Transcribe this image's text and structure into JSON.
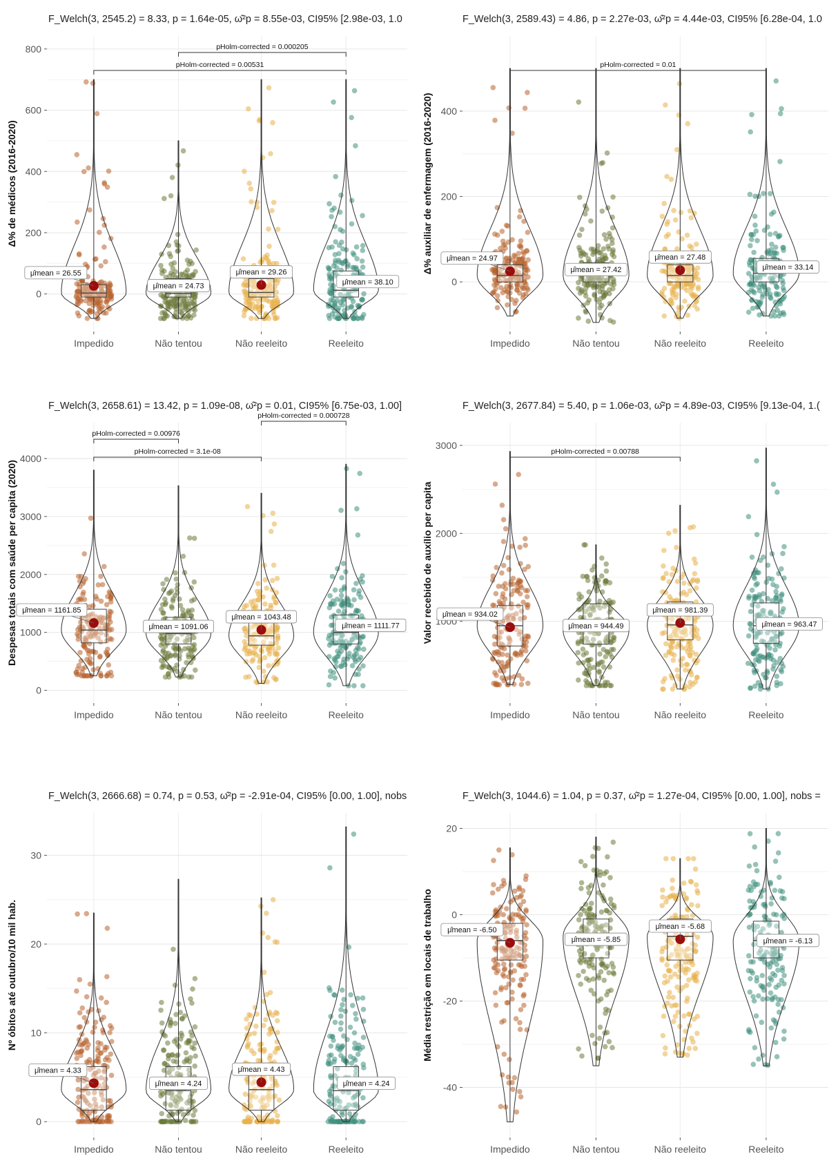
{
  "colors": {
    "Impedido": "#b8652f",
    "Não tentou": "#6b7a3a",
    "Não reeleito": "#e8b04a",
    "Reeleito": "#3f8f7e",
    "mean_point": "#9b0d0d"
  },
  "chart_data": [
    {
      "type": "violin",
      "title": "F_Welch(3, 2545.2) = 8.33, p = 1.64e-05, ω̂²p = 8.55e-03, CI95% [2.98e-03, 1.0",
      "ylabel": "Δ% de médicos (2016-2020)",
      "categories": [
        "Impedido",
        "Não tentou",
        "Não reeleito",
        "Reeleito"
      ],
      "ylim": [
        -100,
        820
      ],
      "yticks": [
        0,
        200,
        400,
        600,
        800
      ],
      "means": [
        26.55,
        24.73,
        29.26,
        38.1
      ],
      "mean_labels": [
        "μ̂mean = 26.55",
        "μ̂mean = 24.73",
        "μ̂mean = 29.26",
        "μ̂mean = 38.10"
      ],
      "quartiles": [
        [
          -10,
          3,
          30
        ],
        [
          -10,
          2,
          50
        ],
        [
          -10,
          5,
          50
        ],
        [
          -10,
          12,
          75
        ]
      ],
      "ranges": [
        [
          -80,
          700
        ],
        [
          -80,
          500
        ],
        [
          -80,
          700
        ],
        [
          -80,
          700
        ]
      ],
      "comparisons": [
        {
          "from": 0,
          "to": 3,
          "level": 1,
          "label": "pHolm-corrected = 0.00531"
        },
        {
          "from": 1,
          "to": 3,
          "level": 2,
          "label": "pHolm-corrected = 0.000205"
        }
      ]
    },
    {
      "type": "violin",
      "title": "F_Welch(3, 2589.43) = 4.86, p = 2.27e-03, ω̂²p = 4.44e-03, CI95% [6.28e-04, 1.0",
      "ylabel": "Δ% auxiliar de enfermagem (2016-2020)",
      "categories": [
        "Impedido",
        "Não tentou",
        "Não reeleito",
        "Reeleito"
      ],
      "ylim": [
        -100,
        560
      ],
      "yticks": [
        0,
        200,
        400
      ],
      "means": [
        24.97,
        27.42,
        27.48,
        33.14
      ],
      "mean_labels": [
        "μ̂mean = 24.97",
        "μ̂mean = 27.42",
        "μ̂mean = 27.48",
        "μ̂mean = 33.14"
      ],
      "quartiles": [
        [
          0,
          15,
          40
        ],
        [
          0,
          15,
          45
        ],
        [
          0,
          15,
          40
        ],
        [
          0,
          20,
          55
        ]
      ],
      "ranges": [
        [
          -80,
          500
        ],
        [
          -95,
          500
        ],
        [
          -85,
          500
        ],
        [
          -80,
          500
        ]
      ],
      "comparisons": [
        {
          "from": 0,
          "to": 3,
          "level": 1,
          "label": "pHolm-corrected = 0.01"
        }
      ]
    },
    {
      "type": "violin",
      "title": "F_Welch(3, 2658.61) = 13.42, p = 1.09e-08, ω̂²p = 0.01, CI95% [6.75e-03, 1.00]",
      "ylabel": "Despesas totais com saúde per capita (2020)",
      "categories": [
        "Impedido",
        "Não tentou",
        "Não reeleito",
        "Reeleito"
      ],
      "ylim": [
        -100,
        4500
      ],
      "yticks": [
        0,
        1000,
        2000,
        3000,
        4000
      ],
      "means": [
        1161.85,
        1091.06,
        1043.48,
        1111.77
      ],
      "mean_labels": [
        "μ̂mean = 1161.85",
        "μ̂mean = 1091.06",
        "μ̂mean = 1043.48",
        "μ̂mean = 1111.77"
      ],
      "quartiles": [
        [
          820,
          1040,
          1400
        ],
        [
          800,
          980,
          1260
        ],
        [
          780,
          940,
          1230
        ],
        [
          800,
          1000,
          1300
        ]
      ],
      "ranges": [
        [
          250,
          3800
        ],
        [
          230,
          3530
        ],
        [
          120,
          3400
        ],
        [
          80,
          3900
        ]
      ],
      "comparisons": [
        {
          "from": 0,
          "to": 2,
          "level": 1,
          "label": "pHolm-corrected = 3.1e-08"
        },
        {
          "from": 0,
          "to": 1,
          "level": 2,
          "label": "pHolm-corrected = 0.00976"
        },
        {
          "from": 2,
          "to": 3,
          "level": 3,
          "label": "pHolm-corrected = 0.000728"
        }
      ]
    },
    {
      "type": "violin",
      "title": "F_Welch(3, 2677.84) = 5.40, p = 1.06e-03, ω̂²p = 4.89e-03, CI95% [9.13e-04, 1.(",
      "ylabel": "Valor recebido de auxílio per capita",
      "categories": [
        "Impedido",
        "Não tentou",
        "Não reeleito",
        "Reeleito"
      ],
      "ylim": [
        150,
        3180
      ],
      "yticks": [
        1000,
        2000,
        3000
      ],
      "means": [
        934.02,
        944.49,
        981.39,
        963.47
      ],
      "mean_labels": [
        "μ̂mean = 934.02",
        "μ̂mean = 944.49",
        "μ̂mean = 981.39",
        "μ̂mean = 963.47"
      ],
      "quartiles": [
        [
          720,
          950,
          1180
        ],
        [
          740,
          900,
          1200
        ],
        [
          790,
          960,
          1220
        ],
        [
          750,
          950,
          1210
        ]
      ],
      "ranges": [
        [
          280,
          2930
        ],
        [
          270,
          1870
        ],
        [
          230,
          2320
        ],
        [
          230,
          2970
        ]
      ],
      "comparisons": [
        {
          "from": 0,
          "to": 2,
          "level": 1,
          "label": "pHolm-corrected = 0.00788"
        }
      ]
    },
    {
      "type": "violin",
      "title": "F_Welch(3, 2666.68) = 0.74, p = 0.53, ω̂²p = -2.91e-04, CI95% [0.00, 1.00], nobs",
      "ylabel": "Nº óbitos até outubro/10 mil hab.",
      "categories": [
        "Impedido",
        "Não tentou",
        "Não reeleito",
        "Reeleito"
      ],
      "ylim": [
        -1,
        34
      ],
      "yticks": [
        0,
        10,
        20,
        30
      ],
      "means": [
        4.33,
        4.24,
        4.43,
        4.24
      ],
      "mean_labels": [
        "μ̂mean = 4.33",
        "μ̂mean = 4.24",
        "μ̂mean = 4.43",
        "μ̂mean = 4.24"
      ],
      "quartiles": [
        [
          1.3,
          3.6,
          6.2
        ],
        [
          1.3,
          3.5,
          6.2
        ],
        [
          1.3,
          3.6,
          6.6
        ],
        [
          1.3,
          3.5,
          6.2
        ]
      ],
      "ranges": [
        [
          0,
          23.5
        ],
        [
          0,
          27.3
        ],
        [
          0,
          25.2
        ],
        [
          0,
          33.2
        ]
      ],
      "comparisons": []
    },
    {
      "type": "violin",
      "title": "F_Welch(3, 1044.6) = 1.04, p = 0.37, ω̂²p = 1.27e-04, CI95% [0.00, 1.00], nobs =",
      "ylabel": "Média restrição em locais de trabalho",
      "categories": [
        "Impedido",
        "Não tentou",
        "Não reeleito",
        "Reeleito"
      ],
      "ylim": [
        -50,
        22
      ],
      "yticks": [
        -40,
        -20,
        0,
        20
      ],
      "means": [
        -6.5,
        -5.85,
        -5.68,
        -6.13
      ],
      "mean_labels": [
        "μ̂mean = -6.50",
        "μ̂mean = -5.85",
        "μ̂mean = -5.68",
        "μ̂mean = -6.13"
      ],
      "quartiles": [
        [
          -10.5,
          -6,
          -2
        ],
        [
          -10,
          -5,
          -1
        ],
        [
          -10.5,
          -5,
          -1
        ],
        [
          -10,
          -6,
          -1.5
        ]
      ],
      "ranges": [
        [
          -48,
          15.5
        ],
        [
          -35,
          18
        ],
        [
          -33,
          13
        ],
        [
          -35,
          20
        ]
      ],
      "comparisons": []
    }
  ]
}
